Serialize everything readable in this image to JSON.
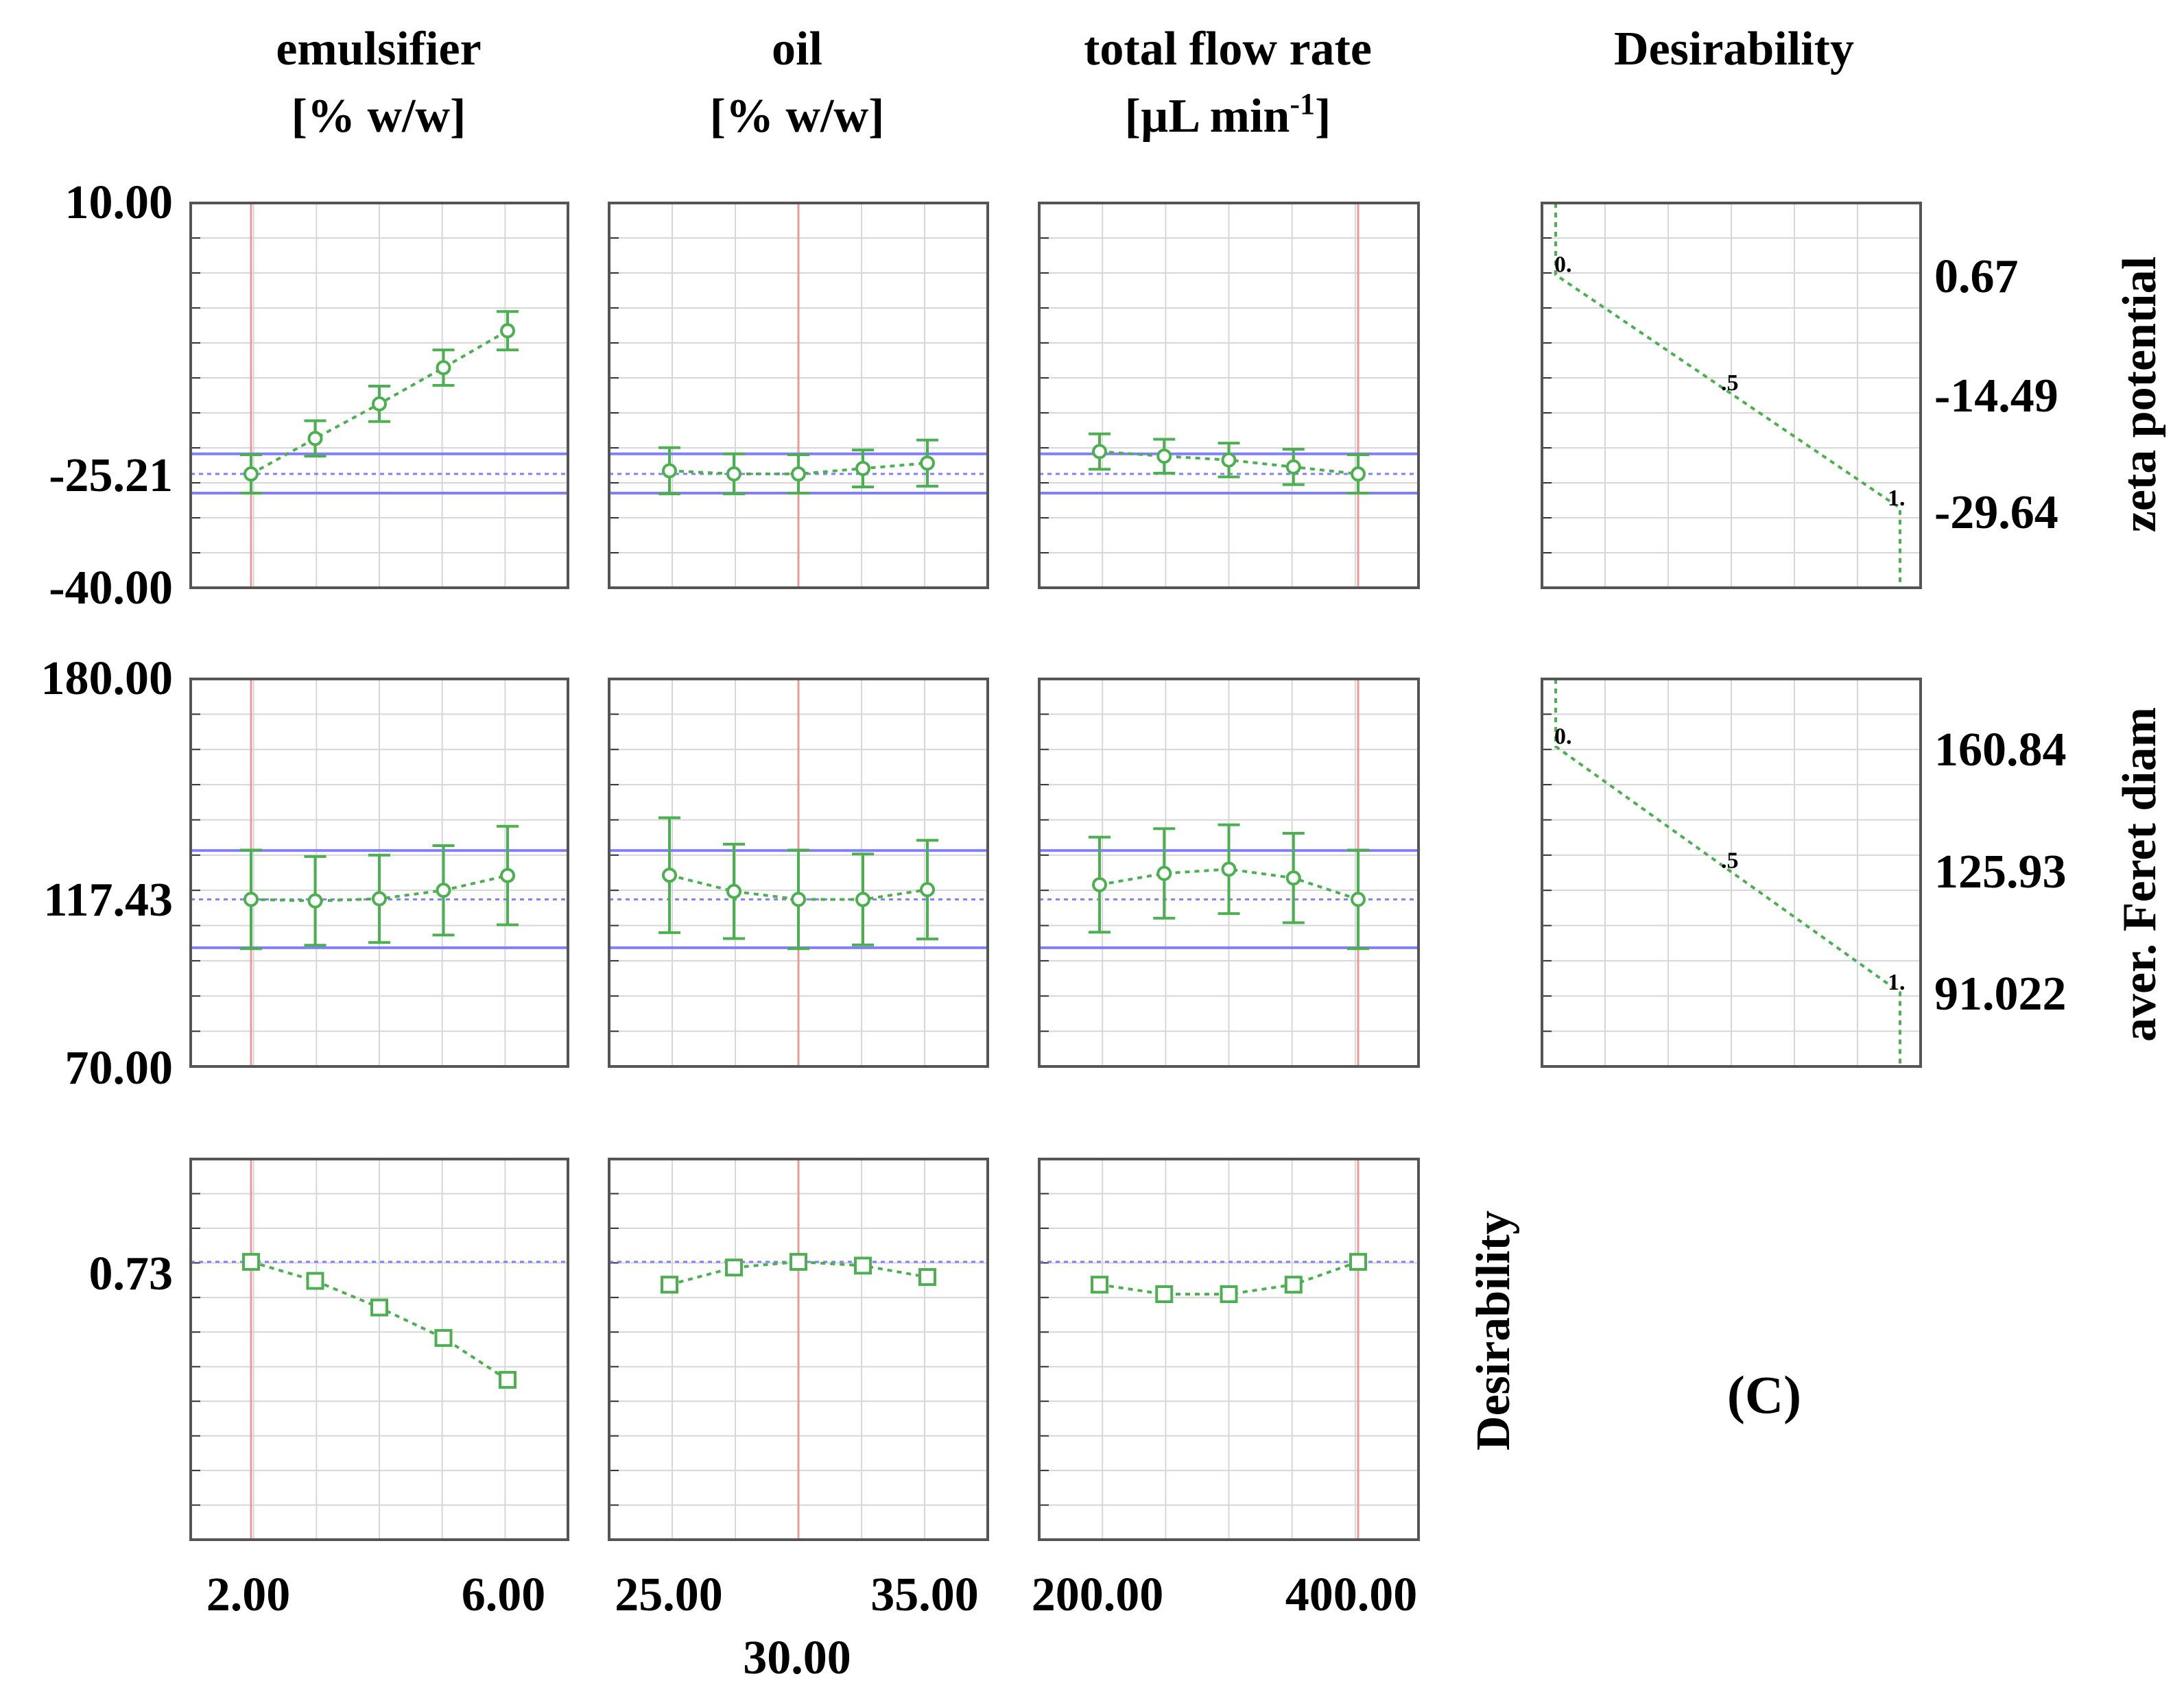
{
  "figure": {
    "panel_label": "(C)",
    "columns": [
      {
        "title_line1": "emulsifier",
        "title_line2": "[% w/w]"
      },
      {
        "title_line1": "oil",
        "title_line2": "[% w/w]"
      },
      {
        "title_line1": "total flow rate",
        "title_line2_base": "[µL min",
        "title_line2_sup": "-1",
        "title_line2_end": "]"
      }
    ],
    "desirability_header": "Desirability",
    "x_ticks": [
      {
        "min_label": "2.00",
        "max_label": "6.00"
      },
      {
        "min_label": "25.00",
        "mid_label": "30.00",
        "max_label": "35.00"
      },
      {
        "min_label": "200.00",
        "max_label": "400.00"
      }
    ]
  },
  "chart_data": [
    {
      "type": "line",
      "name": "zeta potential profile",
      "response": "zeta potential",
      "ylim": [
        -40.0,
        10.0
      ],
      "y_tick_labels": {
        "top": "10.00",
        "current": "-25.21",
        "bottom": "-40.00"
      },
      "current_value": -25.21,
      "ci_band": [
        -27.7,
        -22.6
      ],
      "series": [
        {
          "factor": "emulsifier [% w/w]",
          "x": [
            2,
            3,
            4,
            5,
            6
          ],
          "y": [
            -25.21,
            -20.6,
            -16.1,
            -11.4,
            -6.6
          ],
          "err": [
            2.5,
            2.3,
            2.3,
            2.3,
            2.5
          ],
          "current_x": 2
        },
        {
          "factor": "oil [% w/w]",
          "x": [
            25,
            27.5,
            30,
            32.5,
            35
          ],
          "y": [
            -24.8,
            -25.2,
            -25.21,
            -24.5,
            -23.8
          ],
          "err": [
            3.0,
            2.6,
            2.5,
            2.4,
            3.0
          ],
          "current_x": 30
        },
        {
          "factor": "total flow rate [µL min-1]",
          "x": [
            200,
            250,
            300,
            350,
            400
          ],
          "y": [
            -22.3,
            -22.9,
            -23.4,
            -24.3,
            -25.21
          ],
          "err": [
            2.3,
            2.2,
            2.2,
            2.3,
            2.5
          ],
          "current_x": 400
        }
      ],
      "desirability_function": {
        "title": "zeta potential",
        "tick_labels": [
          "0.67",
          "-14.49",
          "-29.64"
        ],
        "breakpoints": [
          {
            "y": 0.67,
            "d": 0
          },
          {
            "y": -14.49,
            "d": 0.5
          },
          {
            "y": -29.64,
            "d": 1
          }
        ],
        "labels": [
          "0.",
          ".5",
          "1."
        ]
      }
    },
    {
      "type": "line",
      "name": "aver. Feret diam profile",
      "response": "aver. Feret diam",
      "ylim": [
        70.0,
        180.0
      ],
      "y_tick_labels": {
        "top": "180.00",
        "current": "117.43",
        "bottom": "70.00"
      },
      "current_value": 117.43,
      "ci_band": [
        103.7,
        131.3
      ],
      "series": [
        {
          "factor": "emulsifier [% w/w]",
          "x": [
            2,
            3,
            4,
            5,
            6
          ],
          "y": [
            117.43,
            117.0,
            117.6,
            120.0,
            124.2
          ],
          "err": [
            14.0,
            12.6,
            12.4,
            12.7,
            14.0
          ],
          "current_x": 2
        },
        {
          "factor": "oil [% w/w]",
          "x": [
            25,
            27.5,
            30,
            32.5,
            35
          ],
          "y": [
            124.3,
            119.7,
            117.43,
            117.4,
            120.2
          ],
          "err": [
            16.3,
            13.4,
            14.0,
            12.9,
            14.0
          ],
          "current_x": 30
        },
        {
          "factor": "total flow rate [µL min-1]",
          "x": [
            200,
            250,
            300,
            350,
            400
          ],
          "y": [
            121.6,
            124.8,
            126.0,
            123.5,
            117.43
          ],
          "err": [
            13.5,
            12.7,
            12.6,
            12.7,
            14.0
          ],
          "current_x": 400
        }
      ],
      "desirability_function": {
        "title": "aver. Feret diam",
        "tick_labels": [
          "160.84",
          "125.93",
          "91.022"
        ],
        "breakpoints": [
          {
            "y": 160.84,
            "d": 0
          },
          {
            "y": 125.93,
            "d": 0.5
          },
          {
            "y": 91.022,
            "d": 1
          }
        ],
        "labels": [
          "0.",
          ".5",
          "1."
        ]
      }
    },
    {
      "type": "line",
      "name": "Desirability profile",
      "response": "Desirability",
      "ylim": [
        0.0,
        1.0
      ],
      "y_tick_labels": {
        "current": "0.73"
      },
      "current_value": 0.73,
      "series": [
        {
          "factor": "emulsifier [% w/w]",
          "x": [
            2,
            3,
            4,
            5,
            6
          ],
          "y": [
            0.73,
            0.68,
            0.61,
            0.53,
            0.42
          ],
          "current_x": 2
        },
        {
          "factor": "oil [% w/w]",
          "x": [
            25,
            27.5,
            30,
            32.5,
            35
          ],
          "y": [
            0.67,
            0.715,
            0.73,
            0.72,
            0.69
          ],
          "current_x": 30
        },
        {
          "factor": "total flow rate [µL min-1]",
          "x": [
            200,
            250,
            300,
            350,
            400
          ],
          "y": [
            0.67,
            0.645,
            0.645,
            0.67,
            0.73
          ],
          "current_x": 400
        }
      ]
    }
  ],
  "colors": {
    "series": "#4caf50",
    "ci": "#7f7fff",
    "current": "#e99a9a",
    "grid": "#d7d7d7",
    "frame": "#555555"
  }
}
